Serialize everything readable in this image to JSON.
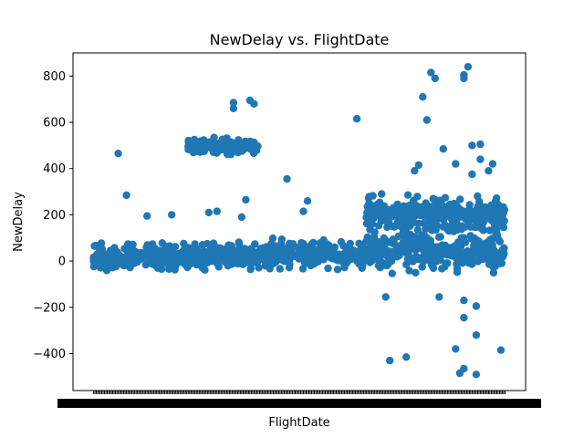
{
  "chart_data": {
    "type": "scatter",
    "title": "NewDelay vs. FlightDate",
    "xlabel": "FlightDate",
    "ylabel": "NewDelay",
    "xlim": [
      -0.05,
      1.05
    ],
    "ylim": [
      -560,
      900
    ],
    "y_ticks": [
      -400,
      -200,
      0,
      200,
      400,
      600,
      800
    ],
    "y_tick_labels": [
      "−400",
      "−200",
      "0",
      "200",
      "400",
      "600",
      "800"
    ],
    "x_ticks_note": "categorical dates, tick labels overlap into an unreadable band",
    "grid": false,
    "legend": "none",
    "marker_color": "#1f77b4",
    "bands": [
      {
        "x0": 0.0,
        "x1": 0.4,
        "lo": -50,
        "hi": 90
      },
      {
        "x0": 0.4,
        "x1": 0.66,
        "lo": -60,
        "hi": 110
      },
      {
        "x0": 0.66,
        "x1": 1.0,
        "lo": -70,
        "hi": 160
      },
      {
        "x0": 0.23,
        "x1": 0.4,
        "lo": 450,
        "hi": 540
      },
      {
        "x0": 0.66,
        "x1": 1.0,
        "lo": 100,
        "hi": 300
      }
    ],
    "outliers": [
      [
        0.06,
        465
      ],
      [
        0.08,
        285
      ],
      [
        0.13,
        195
      ],
      [
        0.19,
        200
      ],
      [
        0.28,
        210
      ],
      [
        0.3,
        215
      ],
      [
        0.34,
        660
      ],
      [
        0.34,
        685
      ],
      [
        0.36,
        190
      ],
      [
        0.38,
        695
      ],
      [
        0.39,
        680
      ],
      [
        0.37,
        265
      ],
      [
        0.47,
        355
      ],
      [
        0.51,
        215
      ],
      [
        0.52,
        260
      ],
      [
        0.64,
        615
      ],
      [
        0.69,
        230
      ],
      [
        0.7,
        290
      ],
      [
        0.71,
        -155
      ],
      [
        0.72,
        -430
      ],
      [
        0.76,
        -415
      ],
      [
        0.78,
        390
      ],
      [
        0.79,
        415
      ],
      [
        0.8,
        710
      ],
      [
        0.81,
        610
      ],
      [
        0.82,
        815
      ],
      [
        0.83,
        790
      ],
      [
        0.85,
        485
      ],
      [
        0.84,
        -155
      ],
      [
        0.88,
        420
      ],
      [
        0.88,
        -380
      ],
      [
        0.89,
        -485
      ],
      [
        0.9,
        805
      ],
      [
        0.9,
        790
      ],
      [
        0.9,
        -465
      ],
      [
        0.91,
        840
      ],
      [
        0.92,
        500
      ],
      [
        0.93,
        -490
      ],
      [
        0.93,
        -195
      ],
      [
        0.93,
        -320
      ],
      [
        0.94,
        505
      ],
      [
        0.94,
        440
      ],
      [
        0.9,
        -245
      ],
      [
        0.9,
        -170
      ],
      [
        0.99,
        -385
      ],
      [
        0.97,
        420
      ],
      [
        0.96,
        390
      ],
      [
        0.92,
        375
      ]
    ]
  }
}
